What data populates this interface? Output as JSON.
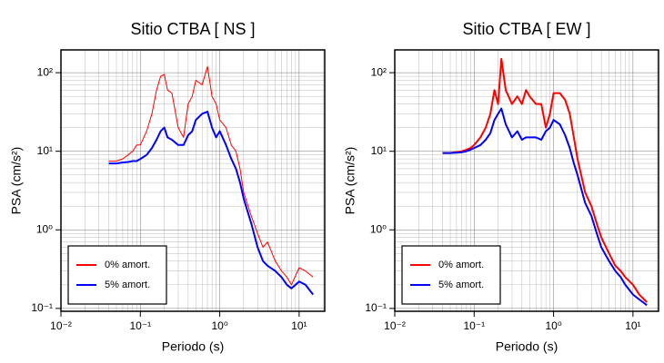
{
  "chart_data": [
    {
      "type": "line",
      "title": "Sitio CTBA [ NS ]",
      "x_label": "Periodo (s)",
      "y_label": "PSA (cm/s²)",
      "x_scale": "log",
      "y_scale": "log",
      "grid": true,
      "legend": "lower left",
      "xlim": [
        0.01,
        21
      ],
      "ylim": [
        0.092,
        195
      ],
      "xticks": [
        {
          "value": 0.01,
          "label": "10⁻²"
        },
        {
          "value": 0.1,
          "label": "10⁻¹"
        },
        {
          "value": 1,
          "label": "10⁰"
        },
        {
          "value": 10,
          "label": "10¹"
        }
      ],
      "yticks": [
        {
          "value": 0.1,
          "label": "10⁻¹"
        },
        {
          "value": 1,
          "label": "10⁰"
        },
        {
          "value": 10,
          "label": "10¹"
        },
        {
          "value": 100,
          "label": "10²"
        }
      ],
      "x": [
        0.04,
        0.05,
        0.06,
        0.07,
        0.08,
        0.09,
        0.1,
        0.12,
        0.14,
        0.16,
        0.18,
        0.2,
        0.22,
        0.25,
        0.3,
        0.35,
        0.4,
        0.45,
        0.5,
        0.6,
        0.7,
        0.8,
        0.9,
        1.0,
        1.2,
        1.4,
        1.6,
        1.8,
        2.0,
        2.5,
        3,
        3.5,
        4,
        5,
        6,
        7,
        8,
        10,
        12,
        15
      ],
      "series": [
        {
          "name": "0% amort.",
          "color": "#ff0000",
          "line_width": 1,
          "values": [
            7.5,
            7.5,
            8,
            9,
            10,
            12,
            12,
            18,
            30,
            60,
            90,
            95,
            60,
            55,
            20,
            15,
            40,
            50,
            80,
            70,
            120,
            50,
            40,
            25,
            20,
            12,
            10,
            6,
            3,
            1.5,
            0.9,
            0.6,
            0.7,
            0.4,
            0.3,
            0.25,
            0.2,
            0.33,
            0.3,
            0.25
          ]
        },
        {
          "name": "5% amort.",
          "color": "#0000ff",
          "line_width": 2,
          "values": [
            7,
            7,
            7.2,
            7.3,
            7.5,
            7.5,
            8,
            9,
            11,
            14,
            18,
            20,
            15,
            14,
            12,
            12,
            16,
            18,
            25,
            30,
            32,
            20,
            15,
            18,
            12,
            8,
            6,
            4,
            2.5,
            1.2,
            0.6,
            0.4,
            0.35,
            0.3,
            0.25,
            0.2,
            0.18,
            0.22,
            0.2,
            0.15
          ]
        }
      ]
    },
    {
      "type": "line",
      "title": "Sitio CTBA [ EW ]",
      "x_label": "Periodo (s)",
      "y_label": "PSA (cm/s²)",
      "x_scale": "log",
      "y_scale": "log",
      "grid": true,
      "legend": "lower left",
      "xlim": [
        0.01,
        21
      ],
      "ylim": [
        0.092,
        195
      ],
      "xticks": [
        {
          "value": 0.01,
          "label": "10⁻²"
        },
        {
          "value": 0.1,
          "label": "10⁻¹"
        },
        {
          "value": 1,
          "label": "10⁰"
        },
        {
          "value": 10,
          "label": "10¹"
        }
      ],
      "yticks": [
        {
          "value": 0.1,
          "label": "10⁻¹"
        },
        {
          "value": 1,
          "label": "10⁰"
        },
        {
          "value": 10,
          "label": "10¹"
        },
        {
          "value": 100,
          "label": "10²"
        }
      ],
      "x": [
        0.04,
        0.05,
        0.06,
        0.07,
        0.08,
        0.09,
        0.1,
        0.12,
        0.14,
        0.16,
        0.18,
        0.2,
        0.22,
        0.25,
        0.3,
        0.35,
        0.4,
        0.45,
        0.5,
        0.6,
        0.7,
        0.8,
        0.9,
        1.0,
        1.2,
        1.4,
        1.6,
        1.8,
        2.0,
        2.5,
        3,
        3.5,
        4,
        5,
        6,
        7,
        8,
        10,
        12,
        15
      ],
      "series": [
        {
          "name": "0% amort.",
          "color": "#ff0000",
          "line_width": 2,
          "values": [
            9.5,
            9.5,
            9.8,
            10,
            10.5,
            11,
            12,
            15,
            20,
            30,
            60,
            40,
            150,
            60,
            40,
            50,
            40,
            60,
            50,
            40,
            40,
            20,
            30,
            55,
            55,
            45,
            30,
            15,
            8,
            3,
            2,
            1.2,
            0.8,
            0.5,
            0.35,
            0.3,
            0.25,
            0.2,
            0.15,
            0.12
          ]
        },
        {
          "name": "5% amort.",
          "color": "#0000ff",
          "line_width": 2,
          "values": [
            9.5,
            9.5,
            9.6,
            9.7,
            10,
            10.5,
            11,
            12,
            14,
            17,
            25,
            30,
            35,
            22,
            15,
            18,
            14,
            15,
            15,
            15,
            14,
            18,
            20,
            25,
            22,
            16,
            11,
            7,
            5,
            2.2,
            1.5,
            0.9,
            0.6,
            0.4,
            0.3,
            0.25,
            0.2,
            0.15,
            0.13,
            0.11
          ]
        }
      ]
    }
  ]
}
